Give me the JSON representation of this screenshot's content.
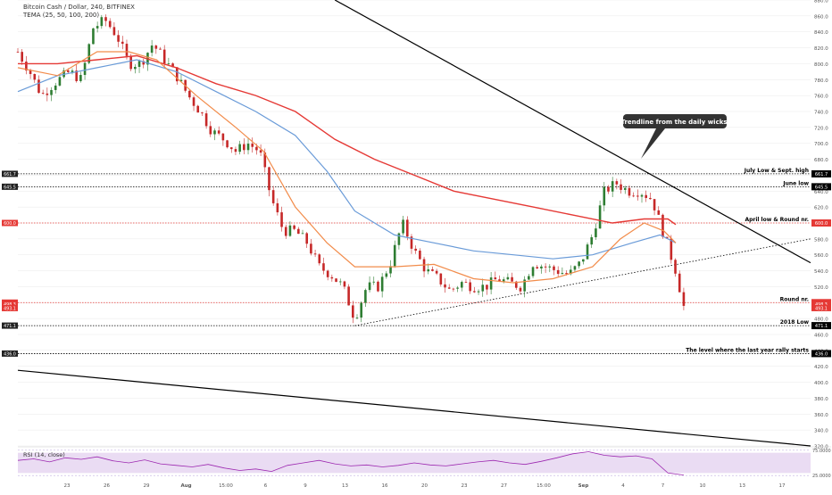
{
  "header": {
    "title": "Bitcoin Cash / Dollar, 240, BITFINEX",
    "indicator": "TEMA (25, 50, 100, 200)"
  },
  "rsi_panel": {
    "label": "RSI (14, close)"
  },
  "colors": {
    "background": "#f5f5f5",
    "up": "#2e7d32",
    "down": "#c62828",
    "tema25": "#f28c4b",
    "tema50": "#f28c4b",
    "tema100": "#6a9bd8",
    "tema200": "#e53935",
    "rsi_line": "#9c27b0",
    "rsi_band": "#eadcf3",
    "resistance": "#e53935",
    "support": "#000000"
  },
  "chart_data": [
    {
      "type": "candlestick",
      "title": "Bitcoin Cash / Dollar, 240, BITFINEX",
      "ylim": [
        320,
        880
      ],
      "yticks": [
        880,
        860,
        840,
        820,
        800,
        780,
        760,
        740,
        720,
        700,
        680,
        660,
        640,
        620,
        600,
        580,
        560,
        540,
        520,
        500,
        480,
        460,
        440,
        420,
        400,
        380,
        360,
        340,
        320
      ],
      "x_tick_labels": [
        "23",
        "26",
        "29",
        "Aug",
        "15:00",
        "6",
        "9",
        "13",
        "16",
        "20",
        "23",
        "27",
        "15:00",
        "Sep",
        "4",
        "7",
        "10",
        "13",
        "17"
      ],
      "price_path": [
        [
          0,
          815
        ],
        [
          3,
          790
        ],
        [
          6,
          760
        ],
        [
          9,
          775
        ],
        [
          13,
          790
        ],
        [
          16,
          780
        ],
        [
          19,
          845
        ],
        [
          22,
          855
        ],
        [
          25,
          835
        ],
        [
          28,
          800
        ],
        [
          31,
          800
        ],
        [
          34,
          825
        ],
        [
          37,
          805
        ],
        [
          40,
          785
        ],
        [
          43,
          760
        ],
        [
          46,
          740
        ],
        [
          49,
          715
        ],
        [
          52,
          705
        ],
        [
          55,
          690
        ],
        [
          58,
          700
        ],
        [
          61,
          690
        ],
        [
          64,
          630
        ],
        [
          67,
          590
        ],
        [
          70,
          590
        ],
        [
          73,
          575
        ],
        [
          76,
          545
        ],
        [
          79,
          535
        ],
        [
          82,
          520
        ],
        [
          85,
          480
        ],
        [
          88,
          520
        ],
        [
          91,
          520
        ],
        [
          94,
          550
        ],
        [
          97,
          600
        ],
        [
          100,
          565
        ],
        [
          103,
          540
        ],
        [
          106,
          530
        ],
        [
          109,
          515
        ],
        [
          112,
          525
        ],
        [
          115,
          520
        ],
        [
          118,
          520
        ],
        [
          121,
          530
        ],
        [
          124,
          525
        ],
        [
          127,
          520
        ],
        [
          130,
          550
        ],
        [
          133,
          545
        ],
        [
          136,
          540
        ],
        [
          139,
          535
        ],
        [
          142,
          550
        ],
        [
          145,
          585
        ],
        [
          148,
          640
        ],
        [
          151,
          650
        ],
        [
          154,
          640
        ],
        [
          157,
          640
        ],
        [
          160,
          630
        ],
        [
          163,
          585
        ],
        [
          166,
          540
        ],
        [
          168,
          495
        ]
      ],
      "tema25_path": [
        [
          0,
          795
        ],
        [
          10,
          785
        ],
        [
          20,
          815
        ],
        [
          28,
          815
        ],
        [
          35,
          805
        ],
        [
          45,
          760
        ],
        [
          55,
          720
        ],
        [
          62,
          690
        ],
        [
          70,
          620
        ],
        [
          78,
          575
        ],
        [
          85,
          545
        ],
        [
          95,
          545
        ],
        [
          105,
          548
        ],
        [
          115,
          530
        ],
        [
          125,
          525
        ],
        [
          135,
          530
        ],
        [
          145,
          545
        ],
        [
          152,
          580
        ],
        [
          158,
          600
        ],
        [
          163,
          590
        ],
        [
          166,
          575
        ]
      ],
      "tema100_path": [
        [
          0,
          765
        ],
        [
          10,
          785
        ],
        [
          20,
          795
        ],
        [
          30,
          805
        ],
        [
          40,
          790
        ],
        [
          50,
          765
        ],
        [
          60,
          740
        ],
        [
          70,
          710
        ],
        [
          78,
          665
        ],
        [
          85,
          615
        ],
        [
          95,
          585
        ],
        [
          105,
          575
        ],
        [
          115,
          565
        ],
        [
          125,
          560
        ],
        [
          135,
          555
        ],
        [
          145,
          560
        ],
        [
          155,
          575
        ],
        [
          162,
          585
        ],
        [
          166,
          575
        ]
      ],
      "tema200_path": [
        [
          0,
          800
        ],
        [
          10,
          800
        ],
        [
          20,
          805
        ],
        [
          30,
          810
        ],
        [
          40,
          795
        ],
        [
          50,
          775
        ],
        [
          60,
          760
        ],
        [
          70,
          740
        ],
        [
          80,
          705
        ],
        [
          90,
          680
        ],
        [
          100,
          660
        ],
        [
          110,
          640
        ],
        [
          120,
          630
        ],
        [
          130,
          620
        ],
        [
          140,
          610
        ],
        [
          150,
          600
        ],
        [
          158,
          605
        ],
        [
          164,
          605
        ],
        [
          166,
          598
        ]
      ],
      "horizontal_levels": [
        {
          "value": 661.7,
          "label": "July Low & Sept. high",
          "tag": "661.7",
          "color": "#000000"
        },
        {
          "value": 645.5,
          "label": "June low",
          "tag": "645.5",
          "color": "#000000"
        },
        {
          "value": 600.0,
          "label": "April low & Round nr.",
          "tag": "600.0",
          "color": "#e53935"
        },
        {
          "value": 500.0,
          "label": "Round nr.",
          "tag": "500.0",
          "color": "#e53935"
        },
        {
          "value": 471.1,
          "label": "2018 Low",
          "tag": "471.1",
          "color": "#000000"
        },
        {
          "value": 436.0,
          "label": "The level where the last year rally starts",
          "tag": "436.0",
          "color": "#000000"
        }
      ],
      "trendlines": [
        {
          "from": [
            80,
            880
          ],
          "to": [
            200,
            550
          ],
          "style": "solid"
        },
        {
          "from": [
            0,
            415
          ],
          "to": [
            200,
            320
          ],
          "style": "solid"
        },
        {
          "from": [
            85,
            471
          ],
          "to": [
            200,
            580
          ],
          "style": "dotted"
        }
      ],
      "callout": {
        "text": "Trendline from the daily wicks",
        "anchor": [
          165,
          680
        ]
      },
      "price_tags_right": [
        {
          "value": 498.3,
          "tag": "498.3"
        },
        {
          "value": 493.1,
          "tag": "493.1"
        }
      ],
      "price_tags_left": [
        {
          "value": 661.7,
          "tag": "661.7"
        },
        {
          "value": 645.5,
          "tag": "645.5"
        },
        {
          "value": 600.0,
          "tag": "600.0"
        },
        {
          "value": 500.0,
          "tag": "500.0"
        },
        {
          "value": 498.3,
          "tag": "498.3"
        },
        {
          "value": 493.1,
          "tag": "493.1"
        },
        {
          "value": 471.1,
          "tag": "471.1"
        },
        {
          "value": 436.0,
          "tag": "436.0"
        }
      ]
    },
    {
      "type": "line",
      "title": "RSI (14, close)",
      "ylim": [
        20,
        80
      ],
      "yticks": [
        75.0,
        25.0
      ],
      "ytick_labels": [
        "75.0000",
        "25.0000"
      ],
      "band": [
        30,
        70
      ],
      "values": [
        55,
        58,
        52,
        60,
        57,
        62,
        54,
        50,
        56,
        48,
        45,
        42,
        47,
        40,
        35,
        38,
        33,
        45,
        50,
        55,
        48,
        44,
        46,
        42,
        45,
        50,
        46,
        44,
        48,
        52,
        55,
        50,
        47,
        53,
        60,
        68,
        72,
        65,
        62,
        64,
        58,
        30,
        26
      ]
    }
  ]
}
